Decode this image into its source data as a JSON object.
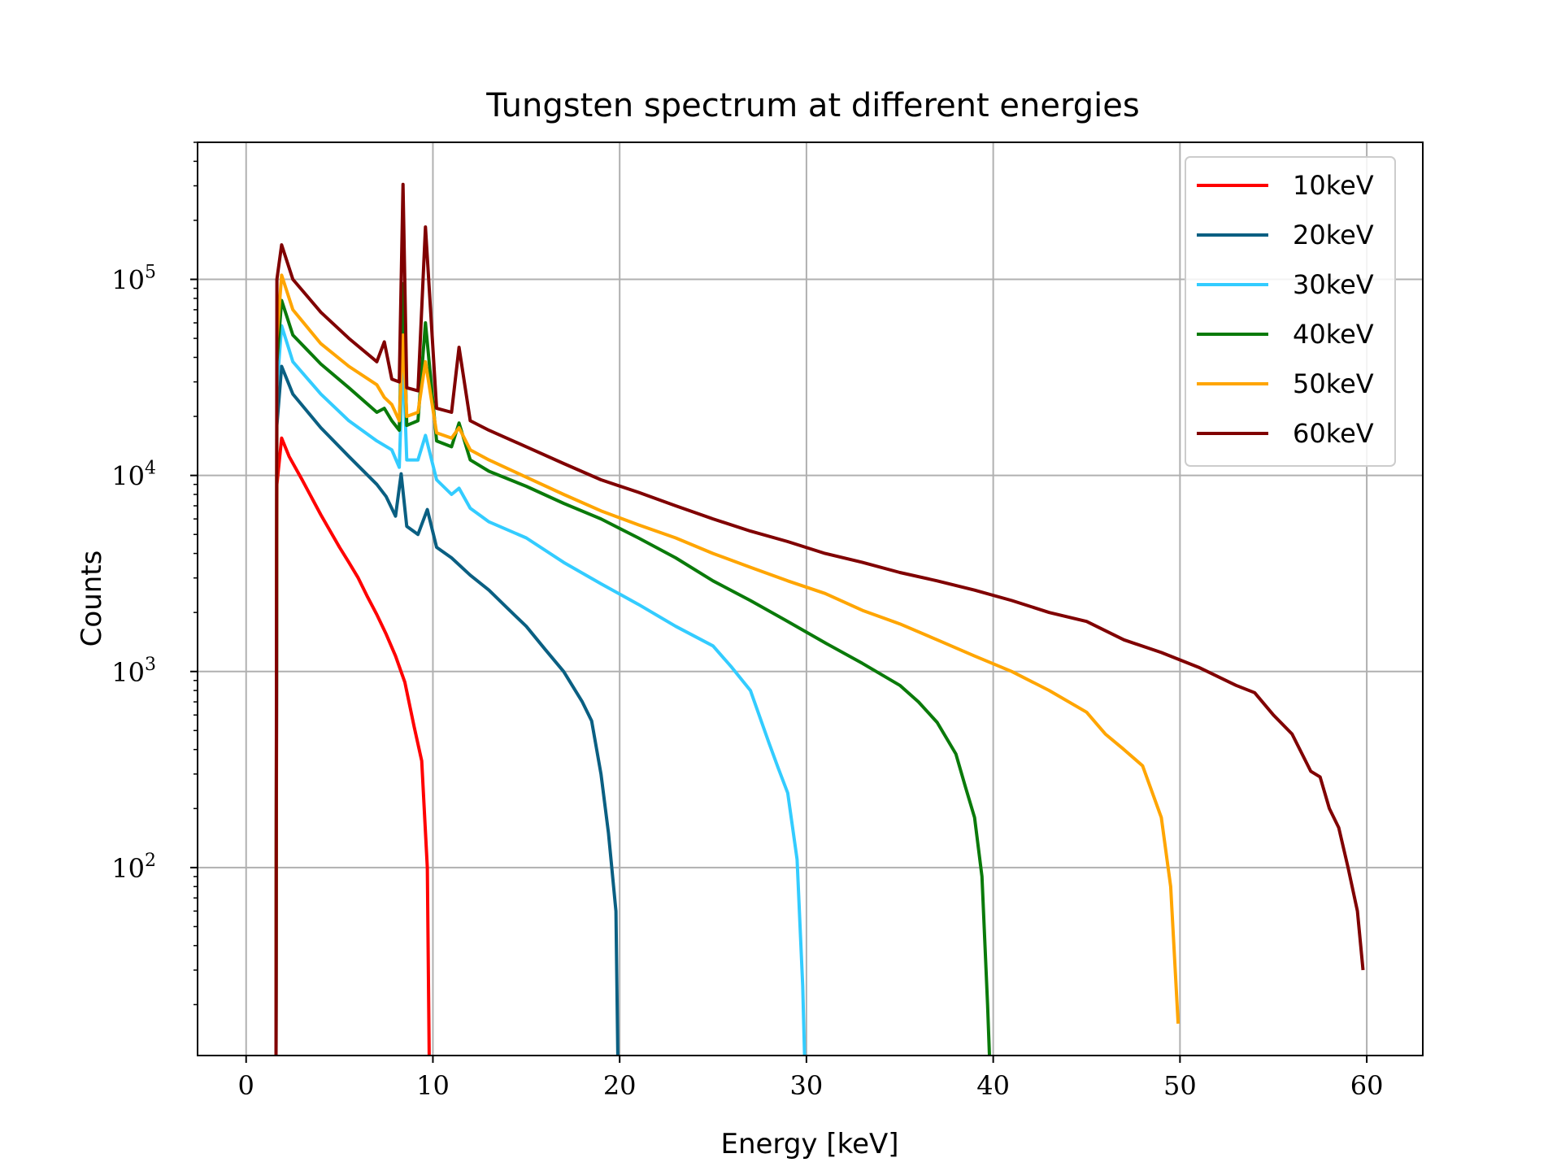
{
  "chart_data": {
    "type": "line",
    "title": "Tungsten spectrum at different energies",
    "xlabel": "Energy [keV]",
    "ylabel": "Counts",
    "xscale": "linear",
    "yscale": "log",
    "xlim": [
      -2.6,
      63
    ],
    "ylim": [
      11,
      500000
    ],
    "xticks": [
      0,
      10,
      20,
      30,
      40,
      50,
      60
    ],
    "xtick_labels": [
      "0",
      "10",
      "20",
      "30",
      "40",
      "50",
      "60"
    ],
    "yticks": [
      100,
      1000,
      10000,
      100000
    ],
    "ytick_base": "10",
    "ytick_exponents": [
      "2",
      "3",
      "4",
      "5"
    ],
    "grid": true,
    "legend_placement": "top-right",
    "series": [
      {
        "name": "10keV",
        "color": "#ff0000",
        "points": [
          [
            1.6,
            11
          ],
          [
            1.65,
            9000
          ],
          [
            1.9,
            15500
          ],
          [
            2.3,
            12500
          ],
          [
            3,
            9500
          ],
          [
            4,
            6300
          ],
          [
            5,
            4300
          ],
          [
            5.5,
            3600
          ],
          [
            6,
            3000
          ],
          [
            6.5,
            2400
          ],
          [
            7,
            1950
          ],
          [
            7.5,
            1550
          ],
          [
            8,
            1200
          ],
          [
            8.5,
            880
          ],
          [
            9,
            520
          ],
          [
            9.4,
            350
          ],
          [
            9.7,
            100
          ],
          [
            9.8,
            11
          ]
        ]
      },
      {
        "name": "20keV",
        "color": "#0a5f82",
        "points": [
          [
            1.6,
            11
          ],
          [
            1.65,
            18000
          ],
          [
            1.9,
            36000
          ],
          [
            2.5,
            26000
          ],
          [
            4,
            17500
          ],
          [
            5.5,
            12500
          ],
          [
            7,
            9000
          ],
          [
            7.5,
            7800
          ],
          [
            8,
            6200
          ],
          [
            8.3,
            10200
          ],
          [
            8.6,
            5500
          ],
          [
            9.2,
            5000
          ],
          [
            9.7,
            6700
          ],
          [
            10.2,
            4300
          ],
          [
            11,
            3800
          ],
          [
            12,
            3100
          ],
          [
            13,
            2600
          ],
          [
            14,
            2100
          ],
          [
            15,
            1700
          ],
          [
            16,
            1300
          ],
          [
            17,
            1000
          ],
          [
            18,
            700
          ],
          [
            18.5,
            560
          ],
          [
            19,
            300
          ],
          [
            19.4,
            150
          ],
          [
            19.8,
            60
          ],
          [
            19.9,
            11
          ]
        ]
      },
      {
        "name": "30keV",
        "color": "#33ccff",
        "points": [
          [
            1.6,
            11
          ],
          [
            1.65,
            28000
          ],
          [
            1.9,
            58000
          ],
          [
            2.5,
            38000
          ],
          [
            4,
            26000
          ],
          [
            5.5,
            19000
          ],
          [
            7,
            15000
          ],
          [
            7.8,
            13500
          ],
          [
            8.2,
            11000
          ],
          [
            8.4,
            42000
          ],
          [
            8.6,
            12000
          ],
          [
            9.2,
            12000
          ],
          [
            9.6,
            16000
          ],
          [
            10.2,
            9500
          ],
          [
            11,
            8000
          ],
          [
            11.4,
            8600
          ],
          [
            12,
            6800
          ],
          [
            13,
            5800
          ],
          [
            15,
            4800
          ],
          [
            17,
            3600
          ],
          [
            19,
            2800
          ],
          [
            21,
            2200
          ],
          [
            23,
            1700
          ],
          [
            25,
            1350
          ],
          [
            26,
            1050
          ],
          [
            27,
            800
          ],
          [
            28,
            430
          ],
          [
            28.5,
            320
          ],
          [
            29,
            240
          ],
          [
            29.5,
            110
          ],
          [
            29.8,
            25
          ],
          [
            29.9,
            11
          ]
        ]
      },
      {
        "name": "40keV",
        "color": "#0a7a0a",
        "points": [
          [
            1.6,
            11
          ],
          [
            1.65,
            38000
          ],
          [
            1.9,
            78000
          ],
          [
            2.5,
            52000
          ],
          [
            4,
            37000
          ],
          [
            5.5,
            28000
          ],
          [
            7,
            21000
          ],
          [
            7.4,
            22000
          ],
          [
            7.8,
            19000
          ],
          [
            8.2,
            17000
          ],
          [
            8.4,
            95000
          ],
          [
            8.6,
            18000
          ],
          [
            9.2,
            19000
          ],
          [
            9.6,
            60000
          ],
          [
            10.2,
            15000
          ],
          [
            11,
            14000
          ],
          [
            11.4,
            18500
          ],
          [
            12,
            12000
          ],
          [
            13,
            10500
          ],
          [
            15,
            8800
          ],
          [
            17,
            7200
          ],
          [
            19,
            6000
          ],
          [
            21,
            4800
          ],
          [
            23,
            3800
          ],
          [
            25,
            2900
          ],
          [
            27,
            2300
          ],
          [
            29,
            1800
          ],
          [
            31,
            1400
          ],
          [
            33,
            1100
          ],
          [
            35,
            850
          ],
          [
            36,
            700
          ],
          [
            37,
            550
          ],
          [
            38,
            380
          ],
          [
            38.5,
            260
          ],
          [
            39,
            180
          ],
          [
            39.4,
            90
          ],
          [
            39.7,
            20
          ],
          [
            39.8,
            11
          ]
        ]
      },
      {
        "name": "50keV",
        "color": "#ffa500",
        "points": [
          [
            1.6,
            11
          ],
          [
            1.65,
            50000
          ],
          [
            1.9,
            105000
          ],
          [
            2.5,
            70000
          ],
          [
            4,
            47000
          ],
          [
            5.5,
            36000
          ],
          [
            7,
            29000
          ],
          [
            7.4,
            25000
          ],
          [
            7.8,
            23000
          ],
          [
            8.2,
            19000
          ],
          [
            8.4,
            52000
          ],
          [
            8.6,
            20000
          ],
          [
            9.2,
            21000
          ],
          [
            9.6,
            38000
          ],
          [
            10.2,
            16500
          ],
          [
            11,
            15500
          ],
          [
            11.4,
            17500
          ],
          [
            12,
            13500
          ],
          [
            13,
            12000
          ],
          [
            15,
            9800
          ],
          [
            17,
            8000
          ],
          [
            19,
            6600
          ],
          [
            21,
            5600
          ],
          [
            23,
            4800
          ],
          [
            25,
            4000
          ],
          [
            27,
            3400
          ],
          [
            29,
            2900
          ],
          [
            31,
            2500
          ],
          [
            33,
            2050
          ],
          [
            35,
            1750
          ],
          [
            37,
            1450
          ],
          [
            39,
            1200
          ],
          [
            41,
            1000
          ],
          [
            43,
            800
          ],
          [
            45,
            620
          ],
          [
            46,
            480
          ],
          [
            47,
            400
          ],
          [
            48,
            330
          ],
          [
            49,
            180
          ],
          [
            49.5,
            80
          ],
          [
            49.9,
            16
          ]
        ]
      },
      {
        "name": "60keV",
        "color": "#800000",
        "points": [
          [
            1.6,
            11
          ],
          [
            1.65,
            100000
          ],
          [
            1.9,
            150000
          ],
          [
            2.5,
            100000
          ],
          [
            4,
            68000
          ],
          [
            5.5,
            50000
          ],
          [
            7,
            38000
          ],
          [
            7.4,
            48000
          ],
          [
            7.8,
            31000
          ],
          [
            8.2,
            30000
          ],
          [
            8.4,
            305000
          ],
          [
            8.6,
            28000
          ],
          [
            9.2,
            27000
          ],
          [
            9.6,
            185000
          ],
          [
            10.2,
            22000
          ],
          [
            11,
            21000
          ],
          [
            11.4,
            45000
          ],
          [
            12,
            19000
          ],
          [
            13,
            17000
          ],
          [
            15,
            14000
          ],
          [
            17,
            11500
          ],
          [
            19,
            9500
          ],
          [
            21,
            8200
          ],
          [
            23,
            7000
          ],
          [
            25,
            6000
          ],
          [
            27,
            5200
          ],
          [
            29,
            4600
          ],
          [
            31,
            4000
          ],
          [
            33,
            3600
          ],
          [
            35,
            3200
          ],
          [
            37,
            2900
          ],
          [
            39,
            2600
          ],
          [
            41,
            2300
          ],
          [
            43,
            2000
          ],
          [
            45,
            1800
          ],
          [
            47,
            1450
          ],
          [
            49,
            1250
          ],
          [
            51,
            1050
          ],
          [
            53,
            850
          ],
          [
            54,
            780
          ],
          [
            55,
            600
          ],
          [
            56,
            480
          ],
          [
            57,
            310
          ],
          [
            57.5,
            290
          ],
          [
            58,
            200
          ],
          [
            58.5,
            160
          ],
          [
            59,
            100
          ],
          [
            59.5,
            60
          ],
          [
            59.8,
            30
          ]
        ]
      }
    ]
  }
}
